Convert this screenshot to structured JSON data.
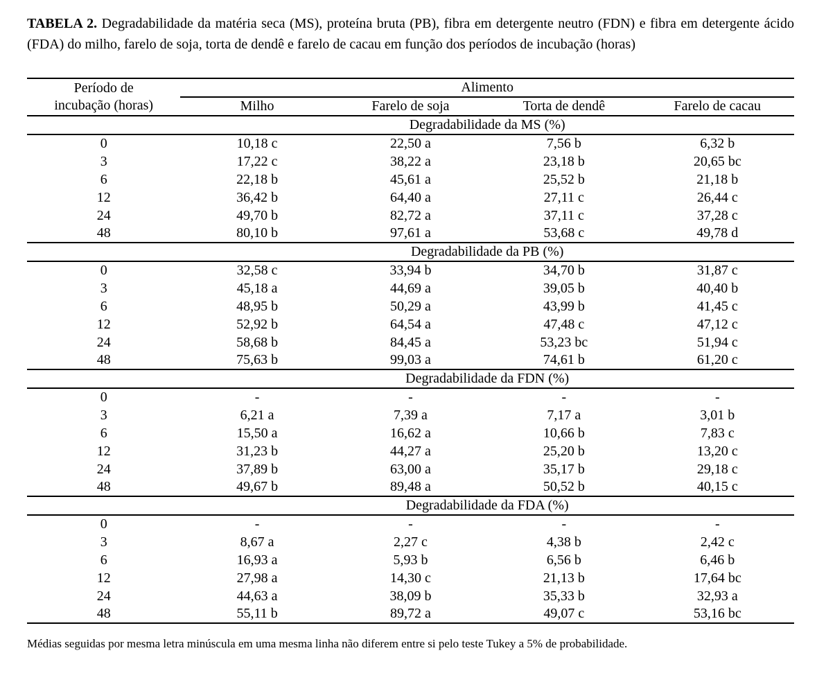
{
  "caption": {
    "label": "TABELA 2.",
    "text": "Degradabilidade da matéria seca (MS), proteína bruta (PB), fibra em detergente neutro (FDN) e fibra em detergente ácido (FDA) do milho, farelo de soja, torta de dendê e farelo de cacau em função dos períodos de incubação (horas)"
  },
  "table": {
    "period_header_line1": "Período de",
    "period_header_line2": "incubação (horas)",
    "group_header": "Alimento",
    "food_columns": [
      "Milho",
      "Farelo de soja",
      "Torta de dendê",
      "Farelo de cacau"
    ],
    "sections": [
      {
        "title": "Degradabilidade da MS (%)",
        "rows": [
          {
            "period": "0",
            "values": [
              "10,18 c",
              "22,50 a",
              "7,56 b",
              "6,32 b"
            ]
          },
          {
            "period": "3",
            "values": [
              "17,22 c",
              "38,22 a",
              "23,18 b",
              "20,65 bc"
            ]
          },
          {
            "period": "6",
            "values": [
              "22,18 b",
              "45,61 a",
              "25,52 b",
              "21,18 b"
            ]
          },
          {
            "period": "12",
            "values": [
              "36,42 b",
              "64,40 a",
              "27,11 c",
              "26,44 c"
            ]
          },
          {
            "period": "24",
            "values": [
              "49,70 b",
              "82,72 a",
              "37,11 c",
              "37,28 c"
            ]
          },
          {
            "period": "48",
            "values": [
              "80,10 b",
              "97,61 a",
              "53,68 c",
              "49,78 d"
            ]
          }
        ]
      },
      {
        "title": "Degradabilidade da PB (%)",
        "rows": [
          {
            "period": "0",
            "values": [
              "32,58 c",
              "33,94 b",
              "34,70 b",
              "31,87 c"
            ]
          },
          {
            "period": "3",
            "values": [
              "45,18 a",
              "44,69 a",
              "39,05 b",
              "40,40 b"
            ]
          },
          {
            "period": "6",
            "values": [
              "48,95 b",
              "50,29 a",
              "43,99 b",
              "41,45 c"
            ]
          },
          {
            "period": "12",
            "values": [
              "52,92 b",
              "64,54 a",
              "47,48 c",
              "47,12 c"
            ]
          },
          {
            "period": "24",
            "values": [
              "58,68 b",
              "84,45 a",
              "53,23 bc",
              "51,94 c"
            ]
          },
          {
            "period": "48",
            "values": [
              "75,63 b",
              "99,03 a",
              "74,61 b",
              "61,20 c"
            ]
          }
        ]
      },
      {
        "title": "Degradabilidade da FDN (%)",
        "rows": [
          {
            "period": "0",
            "values": [
              "-",
              "-",
              "-",
              "-"
            ]
          },
          {
            "period": "3",
            "values": [
              "6,21 a",
              "7,39 a",
              "7,17 a",
              "3,01 b"
            ]
          },
          {
            "period": "6",
            "values": [
              "15,50 a",
              "16,62 a",
              "10,66 b",
              "7,83 c"
            ]
          },
          {
            "period": "12",
            "values": [
              "31,23 b",
              "44,27 a",
              "25,20 b",
              "13,20 c"
            ]
          },
          {
            "period": "24",
            "values": [
              "37,89 b",
              "63,00 a",
              "35,17 b",
              "29,18 c"
            ]
          },
          {
            "period": "48",
            "values": [
              "49,67 b",
              "89,48 a",
              "50,52 b",
              "40,15 c"
            ]
          }
        ]
      },
      {
        "title": "Degradabilidade da FDA (%)",
        "rows": [
          {
            "period": "0",
            "values": [
              "-",
              "-",
              "-",
              "-"
            ]
          },
          {
            "period": "3",
            "values": [
              "8,67 a",
              "2,27 c",
              "4,38 b",
              "2,42 c"
            ]
          },
          {
            "period": "6",
            "values": [
              "16,93 a",
              "5,93 b",
              "6,56 b",
              "6,46 b"
            ]
          },
          {
            "period": "12",
            "values": [
              "27,98 a",
              "14,30 c",
              "21,13 b",
              "17,64 bc"
            ]
          },
          {
            "period": "24",
            "values": [
              "44,63 a",
              "38,09 b",
              "35,33 b",
              "32,93 a"
            ]
          },
          {
            "period": "48",
            "values": [
              "55,11 b",
              "89,72 a",
              "49,07 c",
              "53,16 bc"
            ]
          }
        ]
      }
    ]
  },
  "footnote": "Médias seguidas por mesma letra minúscula em uma mesma linha não diferem entre si pelo teste Tukey a 5% de probabilidade."
}
